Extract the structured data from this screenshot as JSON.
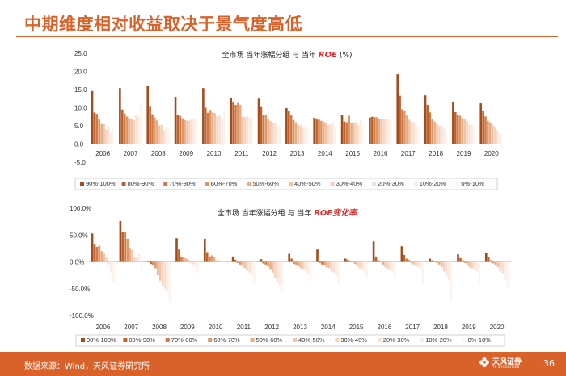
{
  "page": {
    "title": "中期维度相对收益取决于景气度高低",
    "source": "数据来源：Wind，天风证券研究所",
    "page_number": "36",
    "logo_text": "天风证券",
    "logo_sub": "TF SECURITIES"
  },
  "colors": {
    "accent": "#d9622b",
    "series": [
      "#a14d1c",
      "#c0622c",
      "#d07b47",
      "#de9766",
      "#e8ad87",
      "#efc3a6",
      "#f5d4c0",
      "#f8e1d3",
      "#fbece2",
      "#fdf4ee"
    ]
  },
  "chart_data": [
    {
      "type": "bar",
      "title_prefix": "全市场 当年涨幅分组 与 当年",
      "title_emphasis": "ROE",
      "title_suffix": "(%)",
      "categories": [
        "2006",
        "2007",
        "2008",
        "2009",
        "2010",
        "2011",
        "2012",
        "2013",
        "2014",
        "2015",
        "2016",
        "2017",
        "2018",
        "2019",
        "2020"
      ],
      "ylim": [
        -5,
        25
      ],
      "yticks": [
        "25.0",
        "20.0",
        "15.0",
        "10.0",
        "5.0",
        "0.0",
        "-5.0"
      ],
      "series": [
        {
          "name": "90%-100%",
          "values": [
            14.6,
            15.4,
            16.0,
            13.0,
            15.4,
            12.6,
            12.5,
            9.9,
            7.2,
            7.9,
            7.3,
            19.2,
            13.4,
            11.5,
            11.2
          ]
        },
        {
          "name": "80%-90%",
          "values": [
            8.7,
            9.5,
            10.5,
            8.0,
            10.0,
            11.6,
            10.4,
            9.0,
            7.0,
            6.2,
            7.5,
            13.3,
            10.8,
            8.8,
            9.1
          ]
        },
        {
          "name": "70%-80%",
          "values": [
            8.3,
            8.4,
            8.2,
            7.7,
            8.6,
            10.8,
            8.1,
            8.0,
            6.7,
            6.0,
            7.4,
            9.6,
            8.7,
            8.0,
            7.6
          ]
        },
        {
          "name": "60%-70%",
          "values": [
            6.8,
            7.6,
            7.3,
            7.1,
            9.4,
            11.3,
            7.9,
            6.6,
            6.4,
            7.8,
            7.4,
            9.2,
            6.9,
            7.8,
            6.4
          ]
        },
        {
          "name": "50%-60%",
          "values": [
            5.5,
            7.1,
            6.5,
            6.6,
            8.7,
            10.8,
            7.0,
            6.0,
            6.1,
            5.9,
            6.8,
            8.1,
            6.2,
            7.1,
            6.0
          ]
        },
        {
          "name": "40%-50%",
          "values": [
            5.5,
            6.8,
            5.1,
            6.4,
            8.5,
            7.5,
            6.3,
            5.3,
            5.7,
            6.0,
            6.9,
            6.7,
            5.5,
            6.9,
            5.3
          ]
        },
        {
          "name": "30%-40%",
          "values": [
            4.0,
            6.6,
            5.3,
            6.5,
            7.6,
            7.5,
            5.8,
            5.1,
            5.3,
            6.0,
            6.9,
            6.1,
            5.0,
            6.3,
            4.6
          ]
        },
        {
          "name": "20%-30%",
          "values": [
            4.6,
            8.1,
            3.7,
            6.8,
            8.0,
            7.6,
            5.7,
            4.4,
            5.4,
            5.2,
            6.9,
            6.0,
            4.9,
            5.3,
            3.9
          ]
        },
        {
          "name": "10%-20%",
          "values": [
            3.1,
            7.6,
            4.7,
            7.0,
            7.4,
            7.3,
            5.0,
            4.8,
            6.0,
            6.6,
            6.8,
            5.0,
            4.3,
            5.4,
            3.0
          ]
        },
        {
          "name": "0%-10%",
          "values": [
            4.3,
            11.0,
            4.1,
            7.2,
            9.0,
            6.8,
            5.1,
            4.4,
            5.2,
            5.2,
            6.5,
            4.7,
            2.8,
            4.3,
            -1.5
          ]
        }
      ]
    },
    {
      "type": "bar",
      "title_prefix": "全市场 当年涨幅分组 与 当年",
      "title_emphasis": "ROE变化率",
      "title_suffix": "",
      "categories": [
        "2006",
        "2007",
        "2008",
        "2009",
        "2010",
        "2011",
        "2012",
        "2013",
        "2014",
        "2015",
        "2016",
        "2017",
        "2018",
        "2019",
        "2020"
      ],
      "ylim": [
        -100,
        100
      ],
      "yticks": [
        "100.0%",
        "50.0%",
        "0.0%",
        "-50.0%",
        "-100.0%"
      ],
      "series": [
        {
          "name": "90%-100%",
          "values": [
            53,
            76,
            2,
            44,
            43,
            10,
            5,
            15,
            23,
            6,
            38,
            29,
            6,
            14,
            16
          ]
        },
        {
          "name": "80%-90%",
          "values": [
            32,
            56,
            -4,
            23,
            18,
            4,
            -3,
            6,
            -2,
            4,
            10,
            13,
            3,
            7,
            9
          ]
        },
        {
          "name": "70%-80%",
          "values": [
            28,
            55,
            -7,
            10,
            10,
            -2,
            -5,
            -4,
            -5,
            2,
            3,
            6,
            0,
            3,
            3
          ]
        },
        {
          "name": "60%-70%",
          "values": [
            30,
            43,
            -12,
            8,
            12,
            -5,
            -9,
            -6,
            -7,
            0,
            0,
            4,
            -2,
            -2,
            -3
          ]
        },
        {
          "name": "50%-60%",
          "values": [
            20,
            26,
            -25,
            6,
            9,
            -8,
            -15,
            -9,
            -10,
            -4,
            -5,
            -2,
            -5,
            -5,
            -6
          ]
        },
        {
          "name": "40%-50%",
          "values": [
            15,
            22,
            -35,
            4,
            3,
            -12,
            -20,
            -12,
            -12,
            -8,
            -10,
            -5,
            -10,
            -10,
            -10
          ]
        },
        {
          "name": "30%-40%",
          "values": [
            8,
            8,
            -44,
            -2,
            3,
            -16,
            -30,
            -15,
            -18,
            -12,
            -13,
            -8,
            -18,
            -12,
            -17
          ]
        },
        {
          "name": "20%-30%",
          "values": [
            -5,
            10,
            -50,
            -5,
            2,
            -20,
            -39,
            -17,
            -20,
            -15,
            -15,
            -10,
            -25,
            -15,
            -22
          ]
        },
        {
          "name": "10%-20%",
          "values": [
            -20,
            15,
            -57,
            -10,
            1,
            -25,
            -45,
            -24,
            -27,
            -20,
            -18,
            -15,
            -35,
            -18,
            -33
          ]
        },
        {
          "name": "0%-10%",
          "values": [
            -38,
            -15,
            -75,
            -20,
            -3,
            -40,
            -55,
            -36,
            -40,
            -30,
            -27,
            -40,
            -72,
            -40,
            -48
          ]
        }
      ]
    }
  ]
}
